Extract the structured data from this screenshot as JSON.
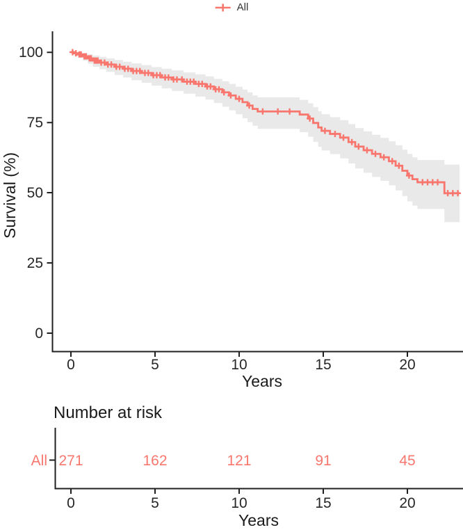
{
  "legend": {
    "position": "top",
    "items": [
      {
        "label": "All",
        "marker": "plus-line-icon",
        "color": "#F8766D"
      }
    ]
  },
  "chart_data": {
    "type": "line",
    "subtype": "kaplan-meier-step-with-ci",
    "title": "",
    "xlabel": "Years",
    "ylabel": "Survival (%)",
    "xlim": [
      0,
      23.1
    ],
    "ylim": [
      0,
      100
    ],
    "x_ticks": [
      0,
      5,
      10,
      15,
      20
    ],
    "y_ticks": [
      0,
      25,
      50,
      75,
      100
    ],
    "grid": false,
    "legend_position": "top",
    "series": [
      {
        "name": "All",
        "color": "#F8766D",
        "ci_color": "#E9E9E9",
        "end_time": 23.1,
        "steps": [
          [
            0,
            100,
            100,
            100
          ],
          [
            0.2,
            99.6,
            100,
            98.7
          ],
          [
            0.4,
            99.2,
            100,
            98.1
          ],
          [
            0.7,
            98.5,
            99.7,
            97.0
          ],
          [
            1.0,
            97.8,
            99.3,
            95.9
          ],
          [
            1.3,
            97.0,
            98.8,
            94.8
          ],
          [
            1.7,
            96.3,
            98.3,
            93.9
          ],
          [
            2.1,
            95.6,
            97.8,
            93.0
          ],
          [
            2.6,
            94.8,
            97.2,
            91.9
          ],
          [
            3.1,
            94.1,
            96.6,
            91.0
          ],
          [
            3.6,
            93.3,
            96.0,
            90.0
          ],
          [
            4.2,
            92.6,
            95.4,
            89.1
          ],
          [
            4.8,
            91.8,
            94.7,
            88.1
          ],
          [
            5.4,
            91.0,
            94.1,
            87.1
          ],
          [
            6.0,
            90.3,
            93.5,
            86.2
          ],
          [
            6.7,
            89.5,
            92.8,
            85.2
          ],
          [
            7.4,
            88.7,
            92.1,
            84.2
          ],
          [
            8.0,
            87.8,
            91.4,
            83.1
          ],
          [
            8.5,
            86.8,
            90.5,
            81.9
          ],
          [
            9.0,
            85.7,
            89.6,
            80.6
          ],
          [
            9.4,
            84.6,
            88.7,
            79.3
          ],
          [
            9.8,
            83.4,
            87.7,
            77.9
          ],
          [
            10.2,
            82.2,
            86.7,
            76.5
          ],
          [
            10.5,
            81.0,
            85.7,
            75.1
          ],
          [
            10.8,
            79.8,
            84.6,
            73.8
          ],
          [
            11.1,
            78.9,
            83.9,
            72.7
          ],
          [
            13.6,
            77.8,
            83.0,
            71.5
          ],
          [
            14.1,
            76.4,
            81.8,
            69.9
          ],
          [
            14.4,
            74.8,
            80.4,
            68.1
          ],
          [
            14.7,
            73.2,
            79.0,
            66.3
          ],
          [
            14.9,
            72.0,
            77.9,
            65.0
          ],
          [
            15.4,
            70.9,
            76.9,
            63.7
          ],
          [
            16.0,
            69.6,
            75.8,
            62.2
          ],
          [
            16.5,
            68.0,
            74.4,
            60.4
          ],
          [
            16.9,
            66.4,
            73.0,
            58.6
          ],
          [
            17.4,
            65.1,
            71.8,
            57.1
          ],
          [
            17.9,
            63.8,
            70.6,
            55.6
          ],
          [
            18.4,
            62.6,
            69.5,
            54.2
          ],
          [
            18.9,
            61.2,
            68.3,
            52.6
          ],
          [
            19.3,
            59.6,
            66.9,
            50.8
          ],
          [
            19.7,
            57.8,
            65.3,
            48.8
          ],
          [
            20.0,
            56.1,
            63.8,
            46.9
          ],
          [
            20.3,
            54.8,
            62.6,
            45.4
          ],
          [
            20.6,
            53.7,
            61.6,
            44.2
          ],
          [
            22.2,
            49.8,
            60.0,
            39.5
          ]
        ],
        "censor_times": [
          0.1,
          0.3,
          0.5,
          0.6,
          0.8,
          0.9,
          1.1,
          1.2,
          1.4,
          1.5,
          1.6,
          1.8,
          2.0,
          2.2,
          2.4,
          2.7,
          2.9,
          3.2,
          3.4,
          3.7,
          3.9,
          4.1,
          4.4,
          4.6,
          4.9,
          5.1,
          5.3,
          5.6,
          5.8,
          6.1,
          6.3,
          6.6,
          6.9,
          7.1,
          7.3,
          7.6,
          7.8,
          8.1,
          8.3,
          8.6,
          8.8,
          9.1,
          9.5,
          10.0,
          10.6,
          11.4,
          12.3,
          13.0,
          14.2,
          15.1,
          15.7,
          16.2,
          16.7,
          17.1,
          17.6,
          18.1,
          18.6,
          19.1,
          19.5,
          20.1,
          20.9,
          21.2,
          21.5,
          21.8,
          22.4,
          22.7,
          23.0
        ]
      }
    ]
  },
  "risk_table": {
    "title": "Number at risk",
    "xlabel": "Years",
    "x_ticks": [
      0,
      5,
      10,
      15,
      20
    ],
    "rows": [
      {
        "label": "All",
        "color": "#F8766D",
        "values": [
          "271",
          "162",
          "121",
          "91",
          "45"
        ]
      }
    ]
  },
  "colors": {
    "accent": "#F8766D",
    "ci_band": "#E9E9E9",
    "axis_line": "#1f1f1f",
    "text": "#262626"
  }
}
